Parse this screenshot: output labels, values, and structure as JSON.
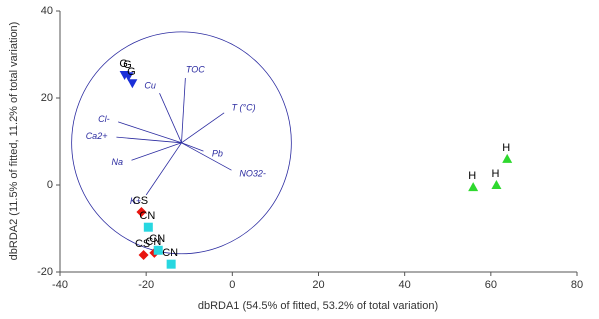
{
  "chart_data": {
    "type": "scatter",
    "xlabel": "dbRDA1 (54.5% of fitted, 53.2% of total variation)",
    "ylabel": "dbRDA2 (11.5% of fitted, 11.2% of total variation)",
    "xlim": [
      -40,
      80
    ],
    "ylim": [
      -20,
      40
    ],
    "xticks": [
      -40,
      -20,
      0,
      20,
      40,
      60,
      80
    ],
    "yticks": [
      -20,
      0,
      20,
      40
    ],
    "series": [
      {
        "marker": "triangle-down",
        "color": "#1a2fd8",
        "x": [
          -25,
          -24.1,
          -23.2
        ],
        "y": [
          25.3,
          25,
          23.4
        ],
        "labels": [
          "G",
          "G",
          "G"
        ]
      },
      {
        "marker": "triangle-up",
        "color": "#2ed82e",
        "x": [
          55.9,
          61.3,
          63.8
        ],
        "y": [
          -0.5,
          0,
          6
        ],
        "labels": [
          "H",
          "H",
          "H"
        ]
      },
      {
        "marker": "diamond",
        "color": "#e8150f",
        "x": [
          -21.1,
          -20.6,
          -18.1
        ],
        "y": [
          -6.2,
          -16.1,
          -15.6
        ],
        "labels": [
          "CS",
          "CS",
          "CN"
        ]
      },
      {
        "marker": "square",
        "color": "#27d7e0",
        "x": [
          -19.5,
          -17.2,
          -14.2
        ],
        "y": [
          -9.7,
          -15,
          -18.2
        ],
        "labels": [
          "CN",
          "CN",
          "CN"
        ]
      }
    ],
    "vectors": {
      "color": "#2b2ba0",
      "origin_x": -11.8,
      "origin_y": 9.7,
      "radius": 25.5,
      "items": [
        {
          "label": "TOC",
          "x": -10.9,
          "y": 24.6
        },
        {
          "label": "Cu",
          "x": -16.9,
          "y": 21.1
        },
        {
          "label": "T (°C)",
          "x": -1.9,
          "y": 16.6
        },
        {
          "label": "Cl-",
          "x": -26.5,
          "y": 14.5
        },
        {
          "label": "Ca2+",
          "x": -26.9,
          "y": 11.0
        },
        {
          "label": "Na",
          "x": -23.4,
          "y": 5.7
        },
        {
          "label": "K+",
          "x": -20.0,
          "y": -2.3
        },
        {
          "label": "Pb",
          "x": -6.7,
          "y": 7.8
        },
        {
          "label": "NO32-",
          "x": -0.2,
          "y": 3.4
        }
      ]
    }
  }
}
